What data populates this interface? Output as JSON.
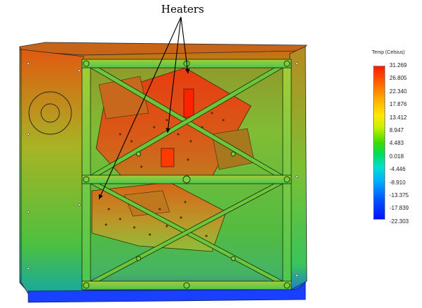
{
  "annotation": {
    "label": "Heaters"
  },
  "legend": {
    "title": "Temp (Celsius)",
    "ticks": [
      "31.269",
      "26.805",
      "22.340",
      "17.876",
      "13.412",
      "8.947",
      "4.483",
      "0.018",
      "-4.446",
      "-8.910",
      "-13.375",
      "-17.839",
      "-22.303"
    ]
  },
  "colors": {
    "hot": "#ff1a00",
    "warm": "#ff8a00",
    "mid": "#3cdc00",
    "cool": "#00a8ff",
    "cold": "#0010ff",
    "frame": "#7ad23a"
  }
}
